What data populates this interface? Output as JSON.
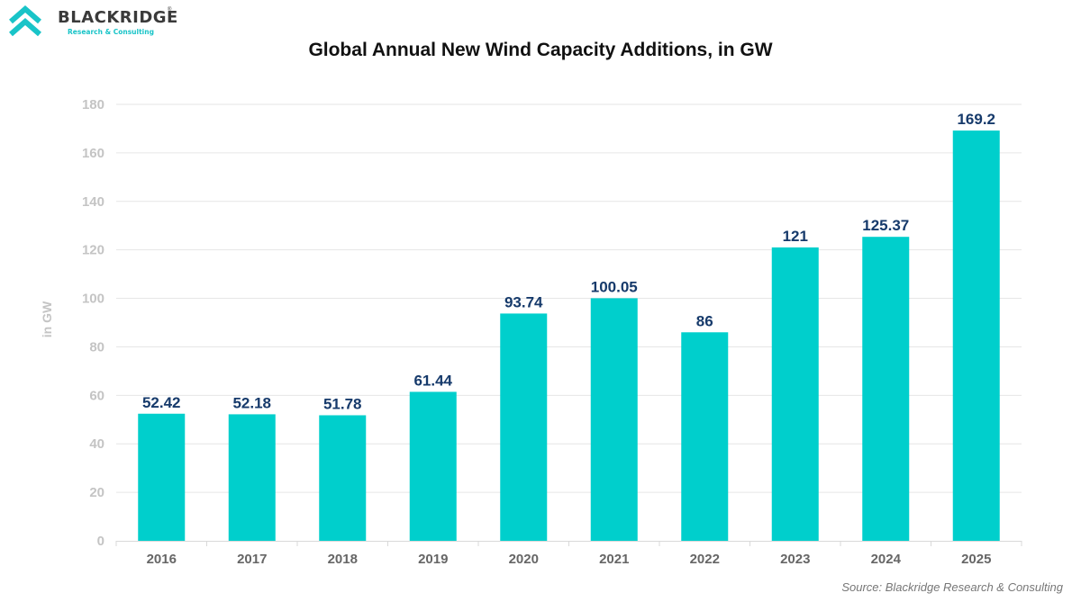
{
  "brand": {
    "name": "BLACKRIDGE",
    "tagline": "Research & Consulting",
    "registered_mark": "®",
    "accent_color": "#19c4c8"
  },
  "source": "Source: Blackridge Research & Consulting",
  "chart_data": {
    "type": "bar",
    "title": "Global Annual New Wind Capacity Additions, in GW",
    "xlabel": "",
    "ylabel": "in GW",
    "categories": [
      "2016",
      "2017",
      "2018",
      "2019",
      "2020",
      "2021",
      "2022",
      "2023",
      "2024",
      "2025"
    ],
    "values": [
      52.42,
      52.18,
      51.78,
      61.44,
      93.74,
      100.05,
      86,
      121,
      125.37,
      169.2
    ],
    "data_labels": [
      "52.42",
      "52.18",
      "51.78",
      "61.44",
      "93.74",
      "100.05",
      "86",
      "121",
      "125.37",
      "169.2"
    ],
    "ylim": [
      0,
      180
    ],
    "yticks": [
      0,
      20,
      40,
      60,
      80,
      100,
      120,
      140,
      160,
      180
    ],
    "grid": true,
    "legend": "none",
    "bar_color": "#00cfcc",
    "label_color": "#163a6b"
  }
}
